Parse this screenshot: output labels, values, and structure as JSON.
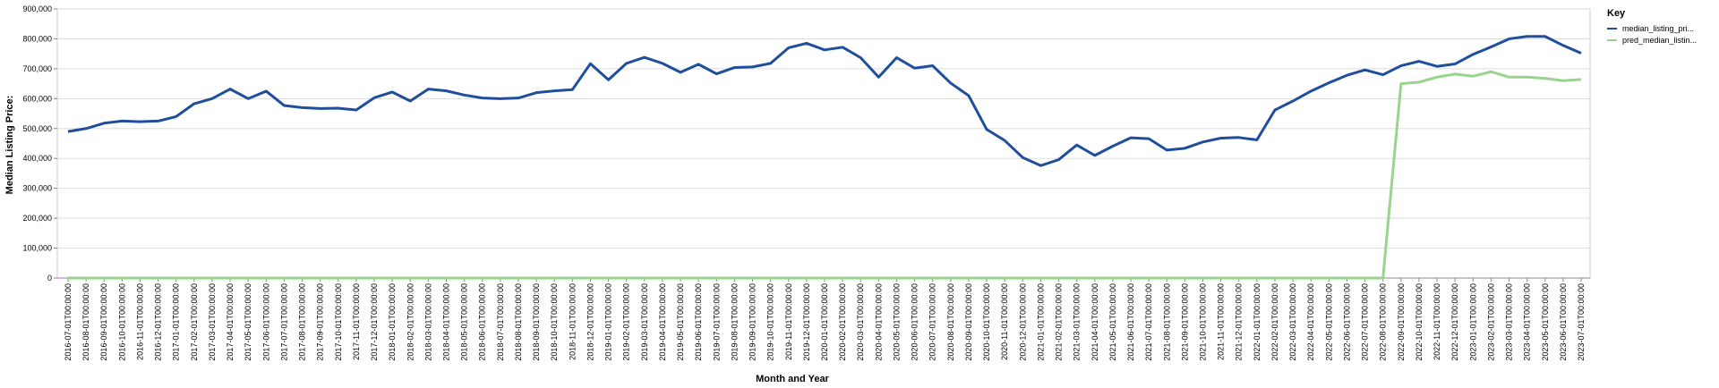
{
  "chart_data": {
    "type": "line",
    "x_label": "Month and Year",
    "y_label": "Median Listing Price:",
    "legend_title": "Key",
    "legend_position": "right",
    "ylim": [
      0,
      900000
    ],
    "yticks": [
      0,
      {
        "value": 100000,
        "label": "100,000"
      },
      {
        "value": 200000,
        "label": "200,000"
      },
      {
        "value": 300000,
        "label": "300,000"
      },
      {
        "value": 400000,
        "label": "400,000"
      },
      {
        "value": 500000,
        "label": "500,000"
      },
      {
        "value": 600000,
        "label": "600,000"
      },
      {
        "value": 700000,
        "label": "700,000"
      },
      {
        "value": 800000,
        "label": "800,000"
      },
      {
        "value": 900000,
        "label": "900,000"
      }
    ],
    "grid": true,
    "categories": [
      "2016-07-01T00:00:00",
      "2016-08-01T00:00:00",
      "2016-09-01T00:00:00",
      "2016-10-01T00:00:00",
      "2016-11-01T00:00:00",
      "2016-12-01T00:00:00",
      "2017-01-01T00:00:00",
      "2017-02-01T00:00:00",
      "2017-03-01T00:00:00",
      "2017-04-01T00:00:00",
      "2017-05-01T00:00:00",
      "2017-06-01T00:00:00",
      "2017-07-01T00:00:00",
      "2017-08-01T00:00:00",
      "2017-09-01T00:00:00",
      "2017-10-01T00:00:00",
      "2017-11-01T00:00:00",
      "2017-12-01T00:00:00",
      "2018-01-01T00:00:00",
      "2018-02-01T00:00:00",
      "2018-03-01T00:00:00",
      "2018-04-01T00:00:00",
      "2018-05-01T00:00:00",
      "2018-06-01T00:00:00",
      "2018-07-01T00:00:00",
      "2018-08-01T00:00:00",
      "2018-09-01T00:00:00",
      "2018-10-01T00:00:00",
      "2018-11-01T00:00:00",
      "2018-12-01T00:00:00",
      "2019-01-01T00:00:00",
      "2019-02-01T00:00:00",
      "2019-03-01T00:00:00",
      "2019-04-01T00:00:00",
      "2019-05-01T00:00:00",
      "2019-06-01T00:00:00",
      "2019-07-01T00:00:00",
      "2019-08-01T00:00:00",
      "2019-09-01T00:00:00",
      "2019-10-01T00:00:00",
      "2019-11-01T00:00:00",
      "2019-12-01T00:00:00",
      "2020-01-01T00:00:00",
      "2020-02-01T00:00:00",
      "2020-03-01T00:00:00",
      "2020-04-01T00:00:00",
      "2020-05-01T00:00:00",
      "2020-06-01T00:00:00",
      "2020-07-01T00:00:00",
      "2020-08-01T00:00:00",
      "2020-09-01T00:00:00",
      "2020-10-01T00:00:00",
      "2020-11-01T00:00:00",
      "2020-12-01T00:00:00",
      "2021-01-01T00:00:00",
      "2021-02-01T00:00:00",
      "2021-03-01T00:00:00",
      "2021-04-01T00:00:00",
      "2021-05-01T00:00:00",
      "2021-06-01T00:00:00",
      "2021-07-01T00:00:00",
      "2021-08-01T00:00:00",
      "2021-09-01T00:00:00",
      "2021-10-01T00:00:00",
      "2021-11-01T00:00:00",
      "2021-12-01T00:00:00",
      "2022-01-01T00:00:00",
      "2022-02-01T00:00:00",
      "2022-03-01T00:00:00",
      "2022-04-01T00:00:00",
      "2022-05-01T00:00:00",
      "2022-06-01T00:00:00",
      "2022-07-01T00:00:00",
      "2022-08-01T00:00:00",
      "2022-09-01T00:00:00",
      "2022-10-01T00:00:00",
      "2022-11-01T00:00:00",
      "2022-12-01T00:00:00",
      "2023-01-01T00:00:00",
      "2023-02-01T00:00:00",
      "2023-03-01T00:00:00",
      "2023-04-01T00:00:00",
      "2023-05-01T00:00:00",
      "2023-06-01T00:00:00",
      "2023-07-01T00:00:00"
    ],
    "series": [
      {
        "name": "median_listing_pri...",
        "color": "#1f4e9c",
        "values": [
          490000,
          500000,
          518000,
          525000,
          523000,
          525000,
          540000,
          583000,
          600000,
          632000,
          600000,
          625000,
          577000,
          570000,
          567000,
          568000,
          562000,
          603000,
          622000,
          592000,
          632000,
          626000,
          612000,
          602000,
          600000,
          602000,
          620000,
          626000,
          630000,
          717000,
          663000,
          718000,
          738000,
          718000,
          688000,
          715000,
          683000,
          704000,
          706000,
          718000,
          770000,
          785000,
          763000,
          772000,
          737000,
          672000,
          737000,
          702000,
          710000,
          652000,
          610000,
          497000,
          460000,
          403000,
          376000,
          396000,
          445000,
          410000,
          441000,
          469000,
          466000,
          428000,
          434000,
          455000,
          468000,
          470000,
          462000,
          562000,
          592000,
          625000,
          653000,
          678000,
          696000,
          680000,
          710000,
          725000,
          708000,
          716000,
          748000,
          773000,
          800000,
          808000,
          808000,
          778000,
          752000
        ]
      },
      {
        "name": "pred_median_listin...",
        "color": "#98d48e",
        "values": [
          0,
          0,
          0,
          0,
          0,
          0,
          0,
          0,
          0,
          0,
          0,
          0,
          0,
          0,
          0,
          0,
          0,
          0,
          0,
          0,
          0,
          0,
          0,
          0,
          0,
          0,
          0,
          0,
          0,
          0,
          0,
          0,
          0,
          0,
          0,
          0,
          0,
          0,
          0,
          0,
          0,
          0,
          0,
          0,
          0,
          0,
          0,
          0,
          0,
          0,
          0,
          0,
          0,
          0,
          0,
          0,
          0,
          0,
          0,
          0,
          0,
          0,
          0,
          0,
          0,
          0,
          0,
          0,
          0,
          0,
          0,
          0,
          0,
          0,
          650000,
          655000,
          672000,
          682000,
          675000,
          690000,
          672000,
          672000,
          668000,
          660000,
          664000
        ]
      }
    ]
  }
}
